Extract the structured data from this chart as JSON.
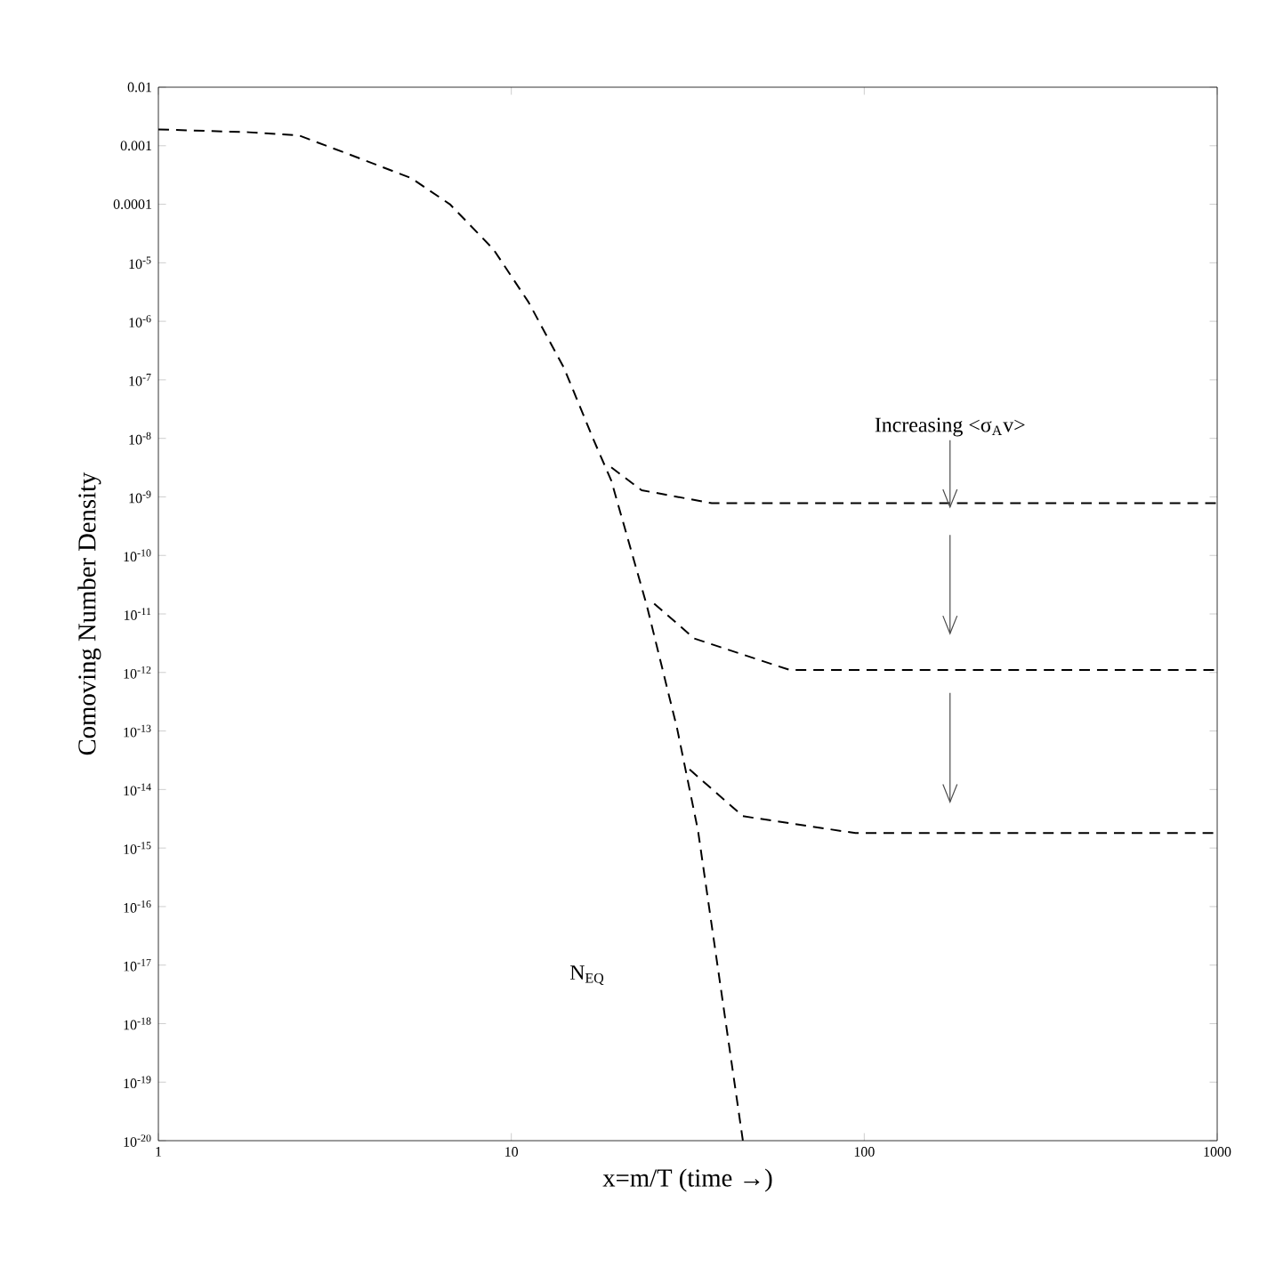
{
  "chart_data": {
    "type": "line",
    "xlabel": "x=m/T (time →)",
    "ylabel": "Comoving Number Density",
    "annotations": [
      {
        "text": "Increasing <σ$_{A}$v>",
        "x": 175,
        "y": 7.8e-10
      },
      "N$_{EQ}$"
    ],
    "log": "xy",
    "xlim": [
      1,
      1000
    ],
    "ylim": [
      1e-20,
      0.01
    ],
    "xticks": [
      1,
      10,
      100,
      1000
    ],
    "yticks": [
      {
        "value": 1e-20,
        "label": "10$^{-20}$"
      },
      {
        "value": 1e-19,
        "label": "10$^{-19}$"
      },
      {
        "value": 1e-18,
        "label": "10$^{-18}$"
      },
      {
        "value": 1e-17,
        "label": "10$^{-17}$"
      },
      {
        "value": 1e-16,
        "label": "10$^{-16}$"
      },
      {
        "value": 1e-15,
        "label": "10$^{-15}$"
      },
      {
        "value": 1e-14,
        "label": "10$^{-14}$"
      },
      {
        "value": 1e-13,
        "label": "10$^{-13}$"
      },
      {
        "value": 1e-12,
        "label": "10$^{-12}$"
      },
      {
        "value": 1e-11,
        "label": "10$^{-11}$"
      },
      {
        "value": 1e-10,
        "label": "10$^{-10}$"
      },
      {
        "value": 1e-09,
        "label": "10$^{-9}$"
      },
      {
        "value": 1e-08,
        "label": "10$^{-8}$"
      },
      {
        "value": 1e-07,
        "label": "10$^{-7}$"
      },
      {
        "value": 1e-06,
        "label": "10$^{-6}$"
      },
      {
        "value": 1e-05,
        "label": "10$^{-5}$"
      },
      0.0001,
      0.001,
      0.01
    ],
    "grid": false,
    "marker": "none",
    "line_style": "dashed",
    "series": [
      {
        "color": "#000000",
        "x": [
          1,
          1.8,
          2.5,
          3.5,
          5.2,
          6.7,
          8.9,
          11.2,
          14.1,
          17.1,
          19.2,
          24.2,
          29.5,
          33.8,
          45.3
        ],
        "values": [
          0.0019,
          0.0017,
          0.0015,
          0.0007,
          0.00028,
          0.0001,
          1.7e-05,
          2.1e-06,
          1.6e-07,
          9.5e-09,
          1.9e-09,
          1.4e-11,
          1.1e-13,
          2e-15,
          1e-20
        ]
      },
      {
        "color": "#000000",
        "x": [
          19.2,
          23.4,
          37,
          1000
        ],
        "values": [
          3.2e-09,
          1.3e-09,
          7.8e-10,
          7.8e-10
        ]
      },
      {
        "color": "#000000",
        "x": [
          25.4,
          33,
          61.6,
          1000
        ],
        "values": [
          1.5e-11,
          3.8e-12,
          1.1e-12,
          1.1e-12
        ]
      },
      {
        "color": "#000000",
        "x": [
          32,
          45.3,
          94.5,
          1000
        ],
        "values": [
          2.2e-14,
          3.5e-15,
          1.8e-15,
          1.8e-15
        ]
      }
    ]
  }
}
